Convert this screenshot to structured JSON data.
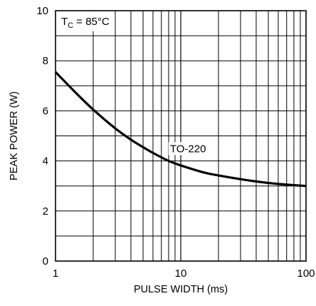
{
  "chart_data": {
    "type": "line",
    "title": "",
    "xlabel": "PULSE WIDTH (ms)",
    "ylabel": "PEAK POWER (W)",
    "xscale": "log",
    "xlim": [
      1,
      100
    ],
    "ylim": [
      0,
      10
    ],
    "grid": true,
    "x_ticks": [
      1,
      10,
      100
    ],
    "y_ticks": [
      0,
      2,
      4,
      6,
      8,
      10
    ],
    "x_tick_labels": [
      "1",
      "10",
      "100"
    ],
    "y_tick_labels": [
      "0",
      "2",
      "4",
      "6",
      "8",
      "10"
    ],
    "annotations": {
      "condition_main": "T",
      "condition_sub": "C",
      "condition_rest": " = 85°C",
      "curve_label": "TO-220"
    },
    "series": [
      {
        "x": [
          1,
          1.5,
          2,
          3,
          4,
          5,
          6,
          8,
          10,
          15,
          20,
          30,
          40,
          50,
          60,
          80,
          100
        ],
        "y": [
          7.55,
          6.65,
          6.05,
          5.3,
          4.85,
          4.55,
          4.32,
          4.0,
          3.82,
          3.55,
          3.42,
          3.27,
          3.18,
          3.12,
          3.08,
          3.03,
          3.0
        ]
      }
    ],
    "line_color": "#000000",
    "grid_color": "#000000"
  }
}
